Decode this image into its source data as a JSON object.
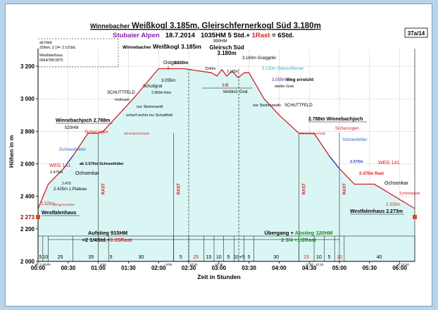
{
  "header": {
    "title_prefix": "Winnebacher ",
    "title_main": "Weißkogl 3.185m, Gleirschfernerkogl Süd 3.180m",
    "subtitle_region": "Stubaier Alpen",
    "subtitle_date": "18.7.2014",
    "subtitle_stats_a": "1035HM  5 Std.+ ",
    "subtitle_rast": "1Rast",
    "subtitle_stats_b": " = 6Std.",
    "badge": "37a/14"
  },
  "info_notes": [
    "ab Haid:",
    "329km, 3 1/4- 3 1/2Std.",
    "Westfalenhaus",
    "0664/788 0875"
  ],
  "chart_data": {
    "type": "area",
    "ylabel": "Höhen in m",
    "xlabel": "Zeit in Stunden",
    "ylim": [
      2000,
      3300
    ],
    "xlim": [
      0,
      6.25
    ],
    "x_unit": "hours",
    "y_ticks": [
      2000,
      2200,
      2273,
      2400,
      2600,
      2800,
      3000,
      3200
    ],
    "y_tick_labels": [
      "2 000",
      "2 200",
      "2 273",
      "2 400",
      "2 600",
      "2 800",
      "3 000",
      "3 200"
    ],
    "x_ticks": [
      0,
      0.5,
      1,
      1.5,
      2,
      2.5,
      3,
      3.5,
      4,
      4.5,
      5,
      5.5,
      6
    ],
    "x_tick_labels": [
      "00:00",
      "00:30",
      "01:00",
      "01:30",
      "02:00",
      "02:30",
      "03:00",
      "03:30",
      "04:00",
      "04:30",
      "05:00",
      "05:30",
      "06:00"
    ],
    "grid": true,
    "profile": {
      "x": [
        0,
        0.17,
        0.42,
        0.58,
        0.83,
        1.0,
        1.08,
        1.33,
        1.58,
        2.0,
        2.42,
        2.88,
        2.97,
        3.05,
        3.13,
        3.22,
        3.32,
        3.42,
        3.5,
        3.75,
        4.0,
        4.33,
        4.58,
        4.83,
        5.0,
        5.25,
        5.58,
        6.25
      ],
      "y": [
        2325,
        2475,
        2570,
        2650,
        2788,
        2788,
        2800,
        2900,
        3000,
        3185,
        3185,
        3160,
        3140,
        3180,
        3140,
        3170,
        3130,
        3160,
        3160,
        3000,
        2900,
        2788,
        2788,
        2650,
        2570,
        2475,
        2475,
        2325
      ]
    },
    "rast_markers": [
      {
        "x": 1.0,
        "label": "RAST"
      },
      {
        "x": 2.25,
        "label": "RAST"
      },
      {
        "x": 4.33,
        "label": "RAST"
      },
      {
        "x": 5.0,
        "label": "RAST"
      }
    ],
    "dashed_markers": [
      2.5,
      3.33
    ],
    "vertical_lines": [
      0,
      0.08,
      0.17,
      0.58,
      1.17,
      2.25,
      2.5,
      2.75,
      2.92,
      3.08,
      3.25,
      3.42,
      3.58,
      4.33,
      4.58,
      4.75,
      4.92,
      5.08,
      6.25
    ],
    "segment_durations": [
      {
        "x": 0.04,
        "label": "5",
        "color": "#000000"
      },
      {
        "x": 0.12,
        "label": "10",
        "color": "#000000"
      },
      {
        "x": 0.37,
        "label": "25",
        "color": "#000000"
      },
      {
        "x": 0.88,
        "label": "35",
        "color": "#000000"
      },
      {
        "x": 1.21,
        "label": "5",
        "color": "#000000"
      },
      {
        "x": 1.71,
        "label": "30",
        "color": "#000000"
      },
      {
        "x": 2.37,
        "label": "5",
        "color": "#000000"
      },
      {
        "x": 2.62,
        "label": "25",
        "color": "#d82020"
      },
      {
        "x": 2.83,
        "label": "15",
        "color": "#000000"
      },
      {
        "x": 3.0,
        "label": "10",
        "color": "#000000"
      },
      {
        "x": 3.16,
        "label": "5",
        "color": "#000000"
      },
      {
        "x": 3.34,
        "label": "10+5",
        "color": "#000000"
      },
      {
        "x": 3.5,
        "label": "5",
        "color": "#000000"
      },
      {
        "x": 3.95,
        "label": "30",
        "color": "#000000"
      },
      {
        "x": 4.45,
        "label": "15",
        "color": "#d82020"
      },
      {
        "x": 4.66,
        "label": "10",
        "color": "#000000"
      },
      {
        "x": 4.83,
        "label": "5",
        "color": "#000000"
      },
      {
        "x": 5.0,
        "label": "10",
        "color": "#d82020"
      },
      {
        "x": 5.66,
        "label": "40",
        "color": "#000000"
      }
    ],
    "time_notes": [
      {
        "x": 0.08,
        "text": "ab 7:40Uhr"
      },
      {
        "x": 1.08,
        "text": "8:55"
      },
      {
        "x": 2.17,
        "text": "9:55"
      },
      {
        "x": 2.58,
        "text": "10:20"
      },
      {
        "x": 3.0,
        "text": "10:45"
      },
      {
        "x": 4.5,
        "text": "12:00"
      },
      {
        "x": 4.67,
        "text": "12:15"
      },
      {
        "x": 6.05,
        "text": "an 13:40"
      }
    ],
    "labels": {
      "ostgrat": "Ostgrat",
      "ostgrat_mark": "I",
      "gipfel_hm": "990HM",
      "gleirsch_label": "Gleirsch Süd",
      "gleirsch_alt": "3.180m",
      "weisskogl_prefix": "Winnebacher",
      "weisskogl_label": "Weißkogl 3.185m",
      "peak_alt": "3.160m",
      "alt_3140": "3140m",
      "alt_3125": "3.125m",
      "gratgipfel": "3.160m Gratgipfel",
      "gleirschferner": "3.120m Gleirschferner",
      "alt_3055": "3.055m",
      "alt_3055b": "3.055m",
      "weg_erreicht": "Weg erreicht",
      "steiler_grat": "steiler Grat",
      "verbind_mark": "I-II",
      "verbind_grat": "Verbind. Grat",
      "schuttgrat": "Schuttgrat",
      "alt_2960": "2.960m links",
      "nur_steinmandl": "nur Steinmandl",
      "nur_steinmandln": "nur Steinmandln",
      "schuttfeld": "SCHUTTFELD",
      "schuttfeld_r": "SCHUTTFELD",
      "muehsam": "mühsam",
      "scharf_rechts": "scharf rechts ins Schuttfeld",
      "winnebachjoch_l": "Winnebachjoch 2.788m",
      "hm_520": "520HM",
      "sicherungen_l": "Sicherungen",
      "winnebacherhuette_l": "Winnebacherhütte",
      "schneefelder_l": "Schneefelder",
      "weg141_l": "WEG 141",
      "alt_2475": "2.475m",
      "schneefelder_2570": "ab 2.570m Schneefelder",
      "alt_2470": "2.470",
      "plateau": "2.425m 1.Plateau",
      "ochsenkar_l": "Ochsenkar",
      "alt_2325_l": "2.325m",
      "ziehgenscharte": "Ziehgenscharte",
      "westfalenhaus_l": "Westfalenhaus",
      "winnebachjoch_r": "2.788m Winnebachjoch",
      "sicherungen_r": "Sicherungen",
      "winnebacherhuette_r": "Winnebacherhütte",
      "schneefelder_r": "Schneefelder",
      "alt_2570_r": "2.570m",
      "weg141_r": "WEG 141",
      "rast_2470": "2.470m Rast",
      "ochsenkar_r": "Ochsenkar",
      "schoentalspitz": "Schöntalspitz",
      "alt_2325_r": "2.325m",
      "westfalenhaus_r": "Westfalenhaus 2.273m",
      "aufstieg": "Aufstieg 915HM",
      "aufstieg_time": "<2 1/4Std.+",
      "aufstieg_rast": "0:05Rast",
      "uebergang": "Übergang + ",
      "abstieg": "Abstieg 120HM",
      "uebergang_time": "2 3/4 ",
      "uebergang_rast": "+1/2Rast"
    },
    "colors": {
      "profile_line": "#d42020",
      "profile_fill": "#d9f6f5",
      "blue_segment": "#3333cc",
      "grid": "#9a9a9a",
      "rast": "#d82020",
      "endpoint": "#e8431e"
    }
  }
}
